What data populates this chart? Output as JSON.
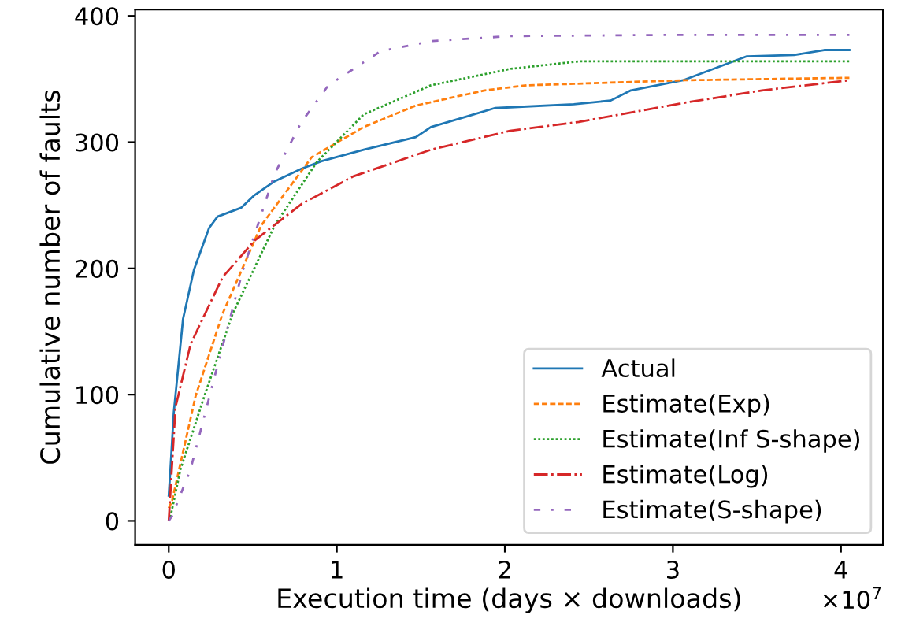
{
  "chart_data": {
    "type": "line",
    "xlabel": "Execution time (days × downloads)",
    "ylabel": "Cumulative number of faults",
    "annotations": [
      "×10$^{7}$"
    ],
    "xlim": [
      -0.2,
      4.25
    ],
    "ylim": [
      -19,
      405
    ],
    "xticks": [
      0,
      1,
      2,
      3,
      4
    ],
    "yticks": [
      0,
      100,
      200,
      300,
      400
    ],
    "grid": false,
    "legend": "bottom right",
    "marker": "none",
    "series": [
      {
        "name": "Actual",
        "color": "#1f77b4",
        "line_style": "solid",
        "x": [
          0,
          0.01,
          0.03,
          0.085,
          0.15,
          0.24,
          0.29,
          0.43,
          0.51,
          0.63,
          0.79,
          0.91,
          1.16,
          1.47,
          1.56,
          1.79,
          1.94,
          2.41,
          2.63,
          2.75,
          3.06,
          3.44,
          3.72,
          3.9,
          4.05
        ],
        "values": [
          20,
          41,
          86,
          160,
          199,
          232,
          241,
          248,
          258,
          269,
          279,
          285,
          294,
          304,
          312,
          321,
          327,
          330,
          333,
          341,
          349,
          368,
          369,
          373,
          373
        ]
      },
      {
        "name": "Estimate(Exp)",
        "color": "#ff7f0e",
        "line_style": "dashed",
        "x": [
          0,
          0.02,
          0.16,
          0.32,
          0.55,
          0.85,
          1.16,
          1.47,
          1.88,
          2.13,
          3.06,
          4.05
        ],
        "values": [
          10,
          16,
          99,
          164,
          234,
          288,
          312,
          329,
          341,
          345,
          349,
          351
        ]
      },
      {
        "name": "Estimate(Inf S-shape)",
        "color": "#2ca02c",
        "line_style": "dotted",
        "x": [
          0.01,
          0.07,
          0.22,
          0.38,
          0.63,
          0.88,
          1.16,
          1.56,
          2.03,
          2.44,
          4.05
        ],
        "values": [
          3,
          41,
          102,
          164,
          234,
          284,
          322,
          345,
          358,
          364,
          364
        ]
      },
      {
        "name": "Estimate(Log)",
        "color": "#d62728",
        "line_style": "dashdot",
        "x": [
          0,
          0.04,
          0.13,
          0.32,
          0.51,
          0.79,
          1.1,
          1.56,
          2.03,
          2.44,
          3.06,
          3.53,
          4.05
        ],
        "values": [
          0,
          90,
          140,
          193,
          222,
          251,
          273,
          294,
          309,
          316,
          331,
          341,
          349
        ]
      },
      {
        "name": "Estimate(S-shape)",
        "color": "#9467bd",
        "line_style": "dashdot_loose",
        "x": [
          0,
          0.02,
          0.13,
          0.29,
          0.44,
          0.63,
          0.79,
          0.95,
          1.26,
          1.56,
          2.03,
          3.06,
          4.05
        ],
        "values": [
          0,
          4,
          41,
          123,
          198,
          275,
          316,
          345,
          372,
          380,
          384,
          385,
          385
        ]
      }
    ]
  }
}
